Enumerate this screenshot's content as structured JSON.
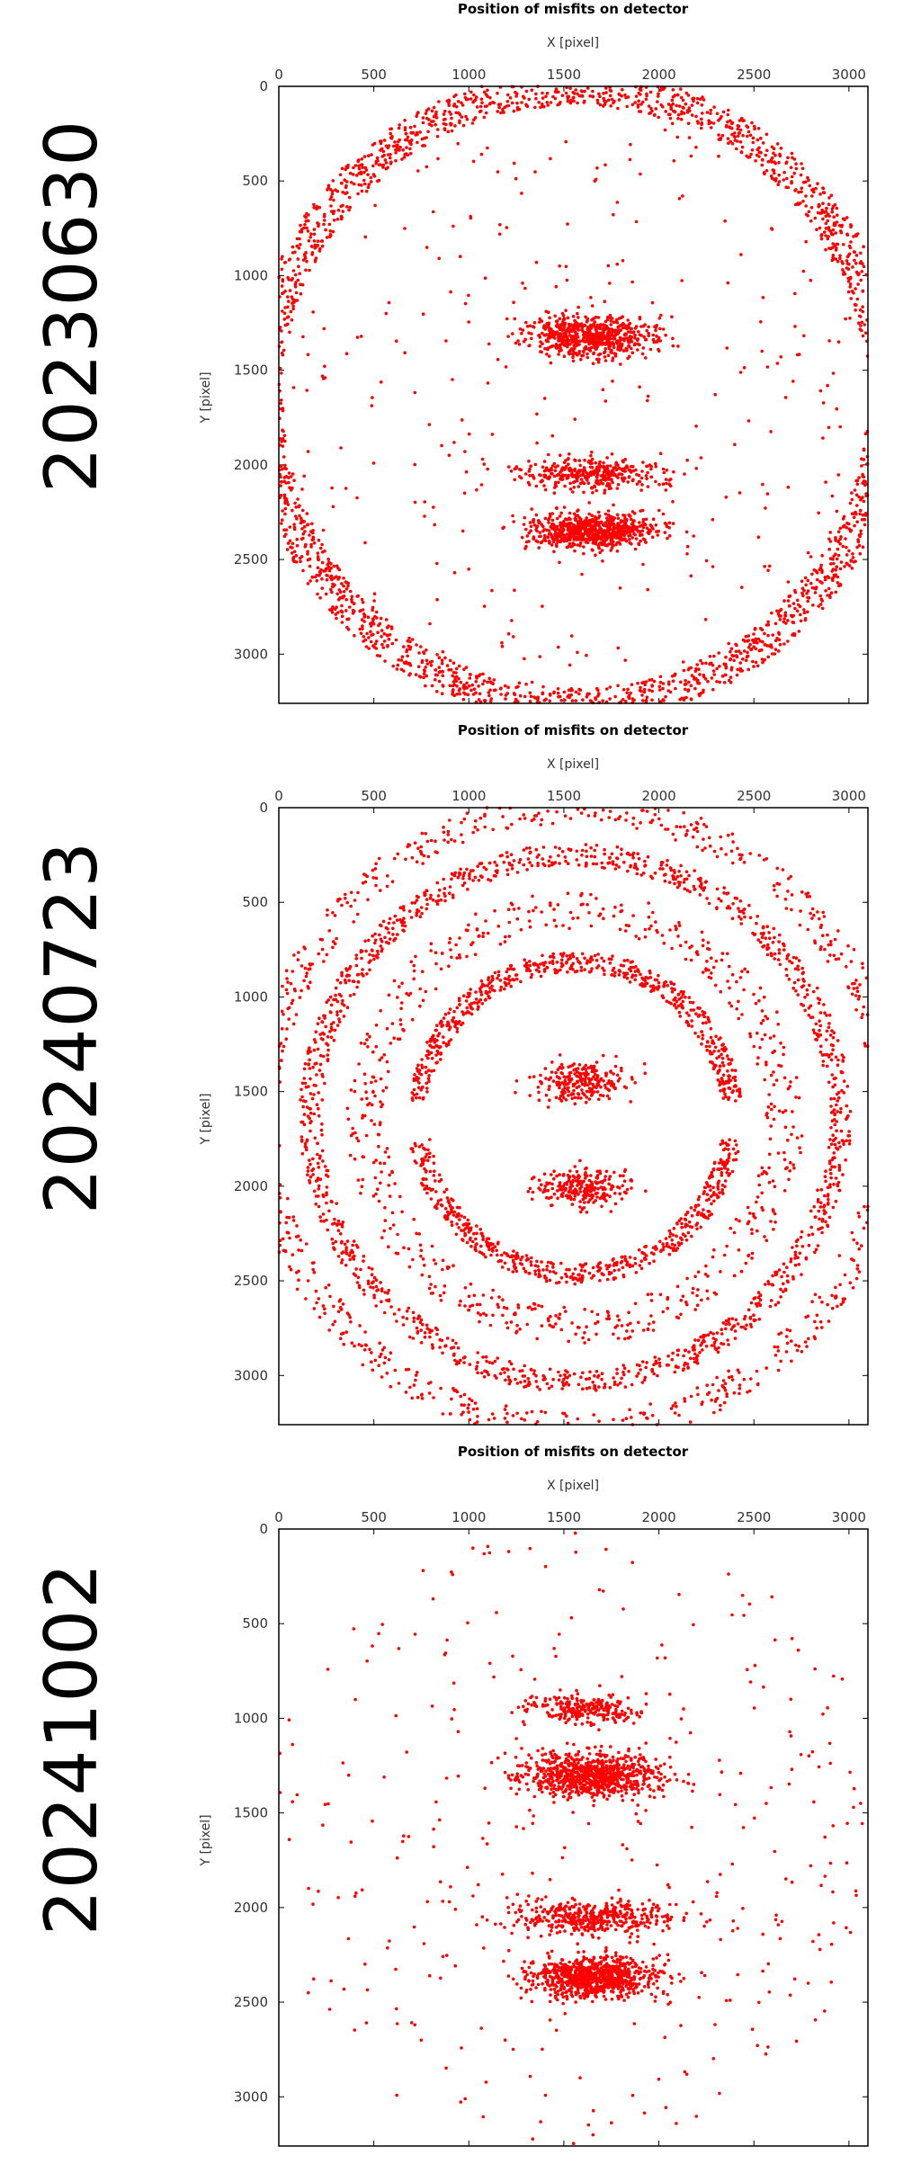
{
  "chart_data": [
    {
      "type": "scatter",
      "side_label": "20230630",
      "title": "Position of misfits on detector",
      "xlabel": "X [pixel]",
      "ylabel": "Y [pixel]",
      "xlim": [
        0,
        3100
      ],
      "ylim": [
        3260,
        0
      ],
      "xticks": [
        "0",
        "500",
        "1000",
        "1500",
        "2000",
        "2500",
        "3000"
      ],
      "yticks": [
        "0",
        "500",
        "1000",
        "1500",
        "2000",
        "2500",
        "3000"
      ],
      "point_color": "#ff0000",
      "distribution": "dense outer ring plus two central bands"
    },
    {
      "type": "scatter",
      "side_label": "20240723",
      "title": "Position of misfits on detector",
      "xlabel": "X [pixel]",
      "ylabel": "Y [pixel]",
      "xlim": [
        0,
        3100
      ],
      "ylim": [
        3260,
        0
      ],
      "xticks": [
        "0",
        "500",
        "1000",
        "1500",
        "2000",
        "2500",
        "3000"
      ],
      "yticks": [
        "0",
        "500",
        "1000",
        "1500",
        "2000",
        "2500",
        "3000"
      ],
      "point_color": "#ff0000",
      "distribution": "two concentric rings and sparse center"
    },
    {
      "type": "scatter",
      "side_label": "20241002",
      "title": "Position of misfits on detector",
      "xlabel": "X [pixel]",
      "ylabel": "Y [pixel]",
      "xlim": [
        0,
        3100
      ],
      "ylim": [
        3260,
        0
      ],
      "xticks": [
        "0",
        "500",
        "1000",
        "1500",
        "2000",
        "2500",
        "3000"
      ],
      "yticks": [
        "0",
        "500",
        "1000",
        "1500",
        "2000",
        "2500",
        "3000"
      ],
      "point_color": "#ff0000",
      "distribution": "scattered points with two central bands"
    }
  ]
}
